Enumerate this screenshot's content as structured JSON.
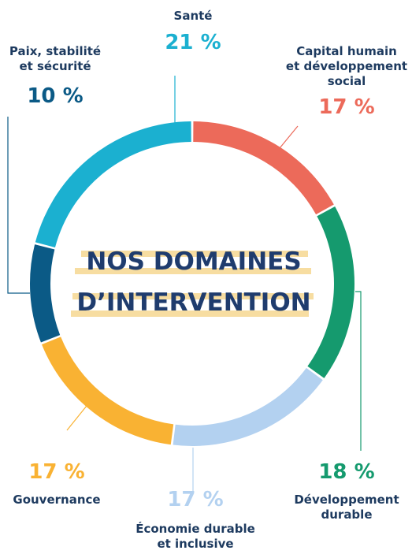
{
  "chart_data": {
    "type": "donut",
    "title": [
      "NOS DOMAINES",
      "D’INTERVENTION"
    ],
    "categories": [
      [
        "Capital humain",
        "et développement",
        "social"
      ],
      [
        "Développement",
        "durable"
      ],
      [
        "Économie durable",
        "et inclusive"
      ],
      [
        "Gouvernance"
      ],
      [
        "Paix, stabilité",
        "et sécurité"
      ],
      [
        "Santé"
      ]
    ],
    "values": [
      17,
      18,
      17,
      17,
      10,
      21
    ],
    "value_labels": [
      "17 %",
      "18 %",
      "17 %",
      "17 %",
      "10 %",
      "21 %"
    ],
    "colors": [
      "#ec6a5a",
      "#159a6e",
      "#b3d1f0",
      "#f9b233",
      "#0b5a86",
      "#1bb0d0"
    ]
  }
}
